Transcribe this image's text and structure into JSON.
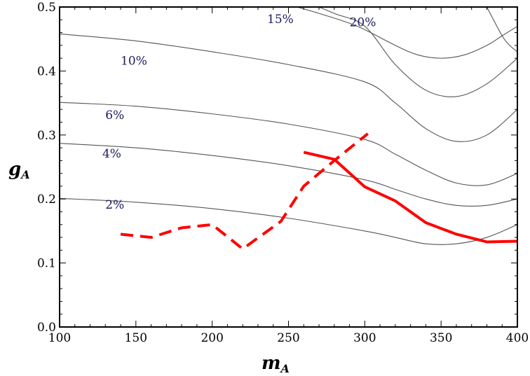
{
  "chart_data": {
    "type": "line",
    "xlabel": {
      "base": "m",
      "sub": "A"
    },
    "ylabel": {
      "base": "g",
      "sub": "A"
    },
    "xlim": [
      100,
      400
    ],
    "ylim": [
      0.0,
      0.5
    ],
    "xticks": [
      "100",
      "150",
      "200",
      "250",
      "300",
      "350",
      "400"
    ],
    "yticks": [
      "0.0",
      "0.1",
      "0.2",
      "0.3",
      "0.4",
      "0.5"
    ],
    "grid": false,
    "legend": "none",
    "contours": [
      {
        "label": "2%",
        "label_at": [
          130,
          0.185
        ],
        "x": [
          100,
          150,
          200,
          250,
          300,
          320,
          340,
          360,
          380,
          400
        ],
        "y": [
          0.201,
          0.195,
          0.185,
          0.17,
          0.15,
          0.14,
          0.13,
          0.13,
          0.14,
          0.16
        ]
      },
      {
        "label": "4%",
        "label_at": [
          128,
          0.265
        ],
        "x": [
          100,
          150,
          200,
          250,
          300,
          320,
          340,
          360,
          380,
          400
        ],
        "y": [
          0.287,
          0.28,
          0.268,
          0.252,
          0.23,
          0.215,
          0.2,
          0.19,
          0.19,
          0.2
        ]
      },
      {
        "label": "6%",
        "label_at": [
          130,
          0.325
        ],
        "x": [
          100,
          150,
          200,
          250,
          300,
          320,
          340,
          360,
          380,
          400
        ],
        "y": [
          0.351,
          0.345,
          0.333,
          0.317,
          0.293,
          0.27,
          0.245,
          0.225,
          0.222,
          0.24
        ]
      },
      {
        "label": "10%",
        "label_at": [
          140,
          0.41
        ],
        "x": [
          100,
          150,
          200,
          250,
          300,
          320,
          340,
          360,
          380,
          400
        ],
        "y": [
          0.458,
          0.447,
          0.43,
          0.41,
          0.383,
          0.35,
          0.31,
          0.29,
          0.3,
          0.34
        ]
      },
      {
        "label": "",
        "label_at": null,
        "x": [
          260,
          280,
          300,
          320,
          340,
          360,
          380,
          400
        ],
        "y": [
          0.51,
          0.49,
          0.47,
          0.41,
          0.37,
          0.36,
          0.38,
          0.42
        ]
      },
      {
        "label": "15%",
        "label_at": [
          236,
          0.475
        ],
        "x": [
          248,
          270,
          295,
          320,
          335,
          350,
          365,
          380,
          390,
          400
        ],
        "y": [
          0.505,
          0.49,
          0.47,
          0.44,
          0.425,
          0.42,
          0.425,
          0.44,
          0.455,
          0.47
        ]
      },
      {
        "label": "20%",
        "label_at": [
          290,
          0.47
        ],
        "x": [
          380,
          390,
          395,
          400
        ],
        "y": [
          0.5,
          0.455,
          0.44,
          0.43
        ]
      }
    ],
    "series": [
      {
        "style": "dashed",
        "color": "#ff0000",
        "x": [
          140,
          160,
          180,
          200,
          220,
          245,
          260,
          280,
          302
        ],
        "y": [
          0.145,
          0.14,
          0.155,
          0.16,
          0.122,
          0.165,
          0.22,
          0.26,
          0.302
        ]
      },
      {
        "style": "solid",
        "color": "#ff0000",
        "x": [
          260,
          280,
          300,
          320,
          340,
          360,
          380,
          400
        ],
        "y": [
          0.273,
          0.262,
          0.219,
          0.197,
          0.163,
          0.145,
          0.133,
          0.134
        ]
      }
    ]
  }
}
